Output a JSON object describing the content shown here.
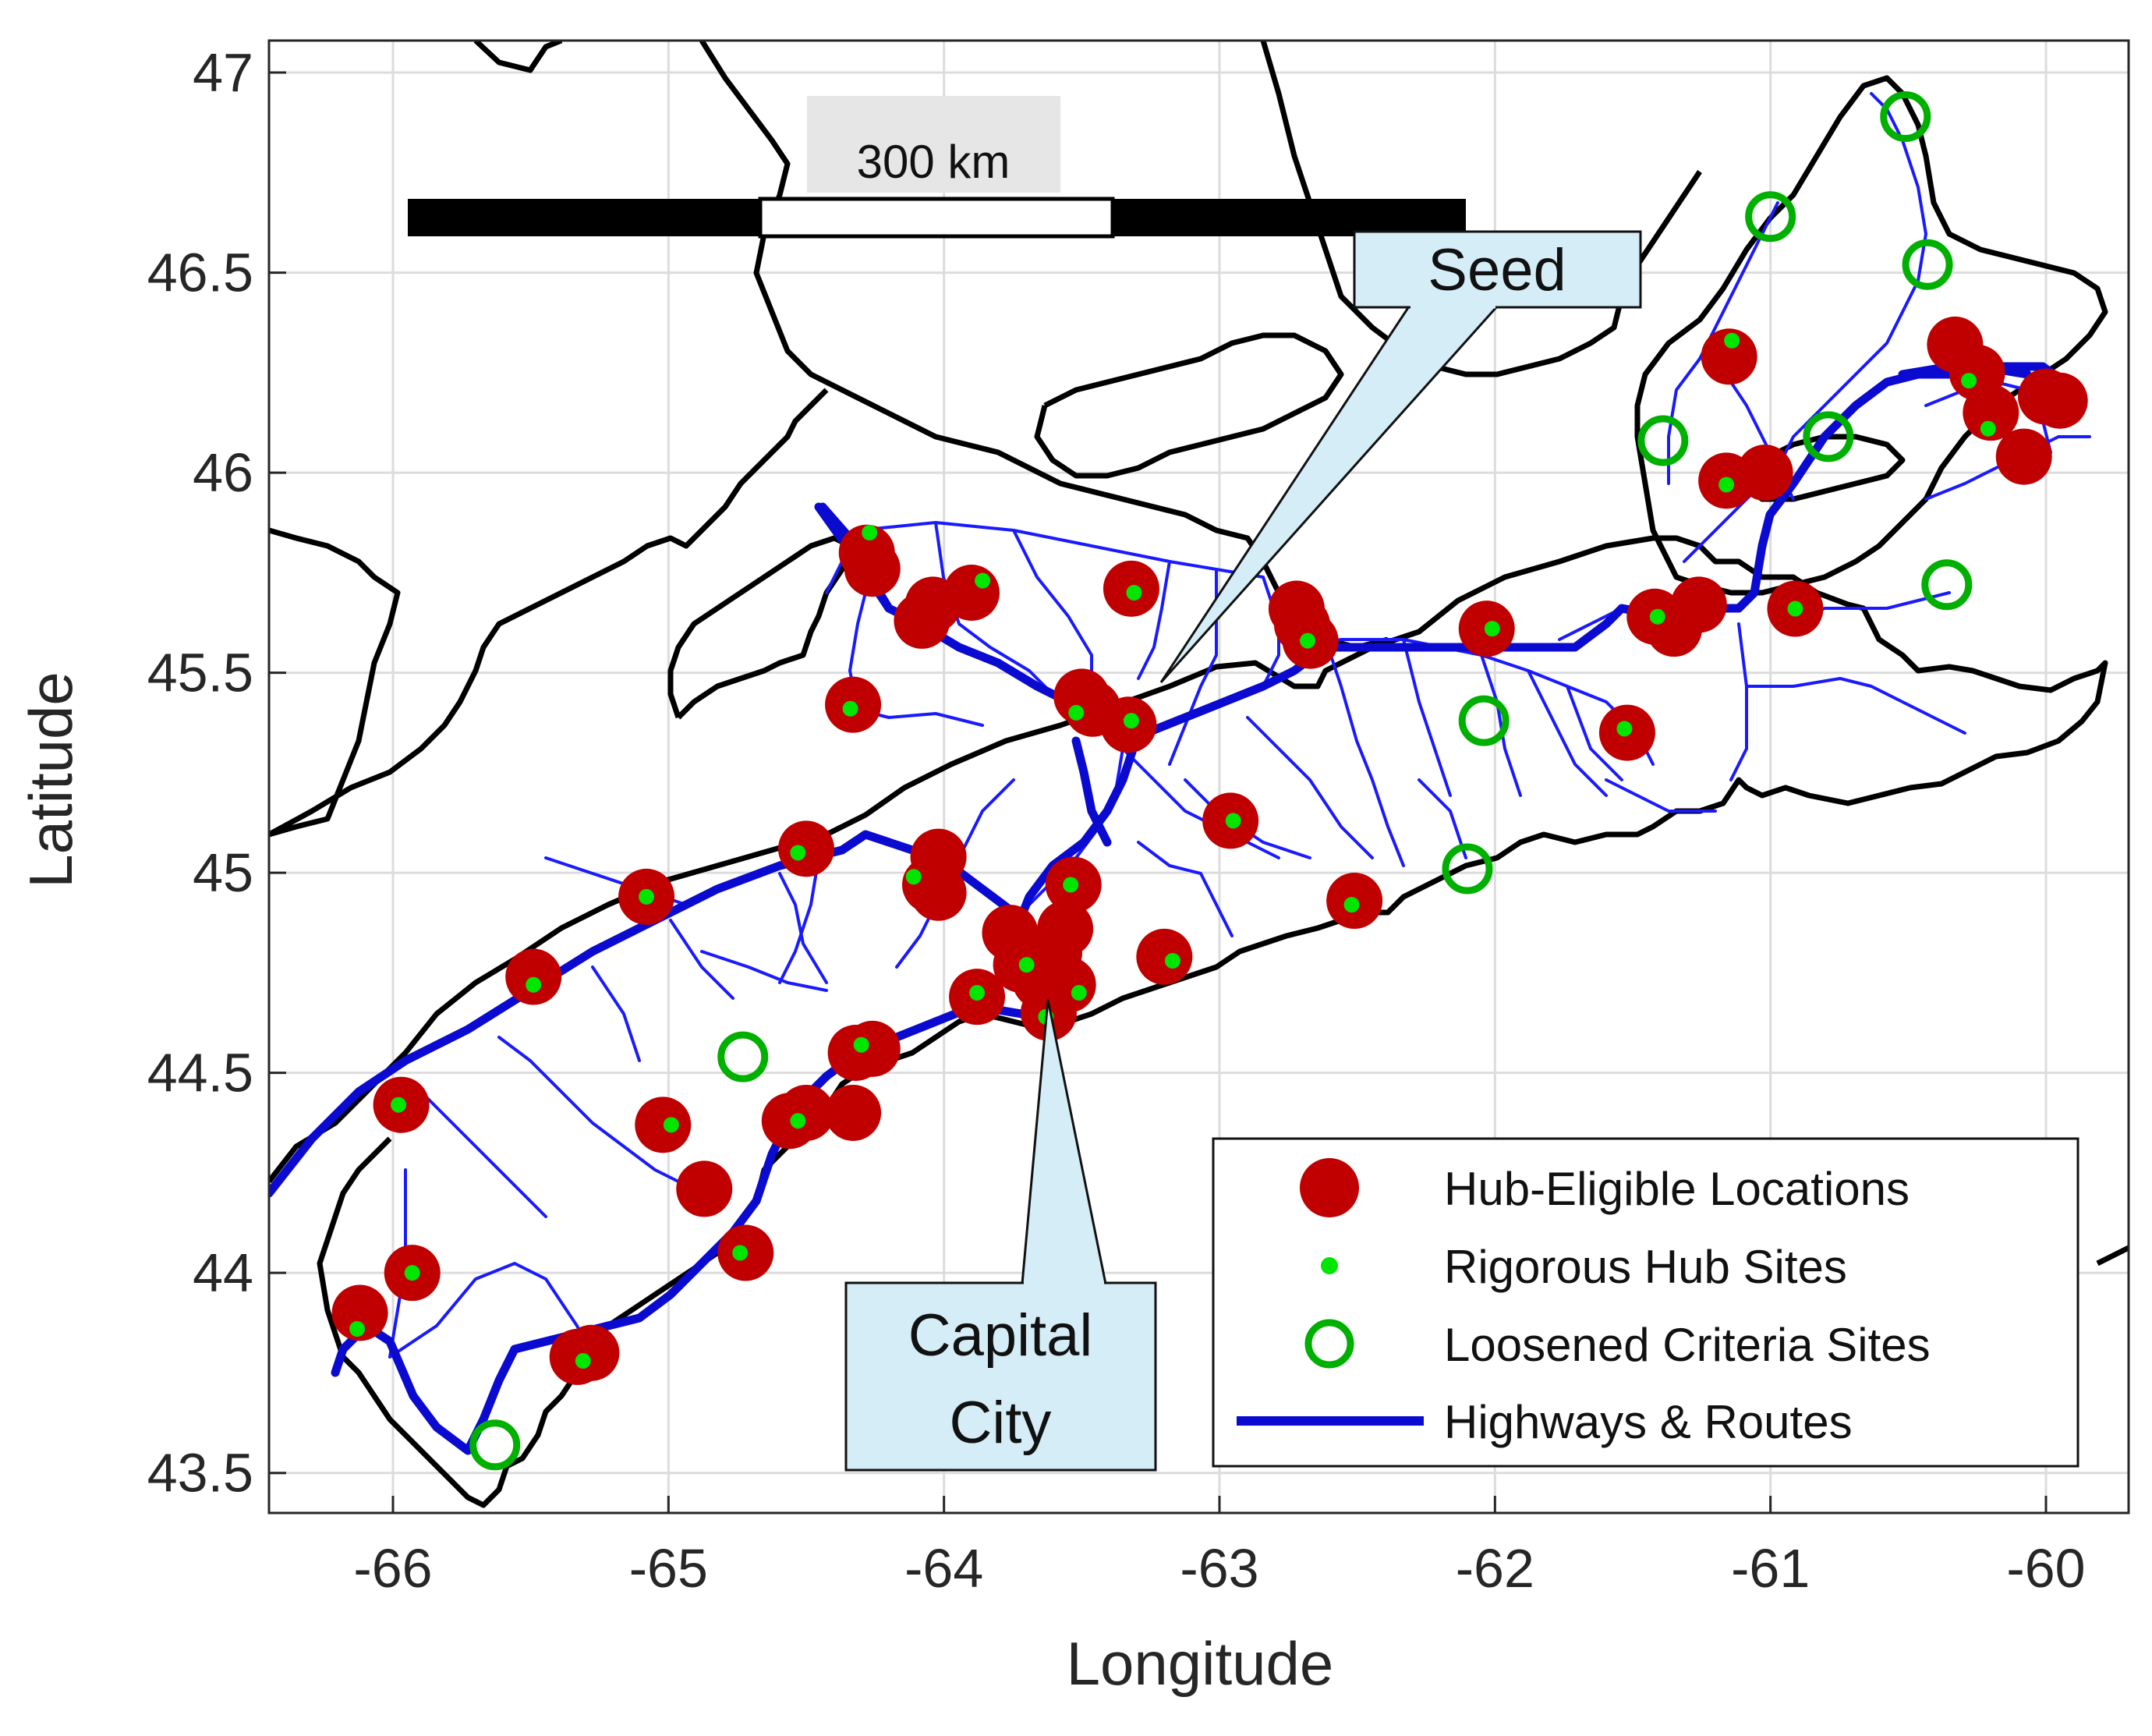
{
  "axes": {
    "xlabel": "Longitude",
    "ylabel": "Latitude",
    "xlim": [
      -66.45,
      -59.7
    ],
    "ylim": [
      43.4,
      47.08
    ],
    "xticks": [
      "-66",
      "-65",
      "-64",
      "-63",
      "-62",
      "-61",
      "-60"
    ],
    "yticks": [
      "43.5",
      "44",
      "44.5",
      "45",
      "45.5",
      "46",
      "46.5",
      "47"
    ],
    "grid": true
  },
  "scale_bar": {
    "label": "300 km"
  },
  "callouts": {
    "seed": {
      "text": "Seed"
    },
    "capital": {
      "line1": "Capital",
      "line2": "City"
    }
  },
  "legend": {
    "position": "bottom-right",
    "items": [
      {
        "label": "Hub-Eligible Locations",
        "marker": "filled-circle",
        "color": "#c00000"
      },
      {
        "label": "Rigorous Hub Sites",
        "marker": "dot",
        "color": "#00e600"
      },
      {
        "label": "Loosened Criteria Sites",
        "marker": "hollow-circle",
        "color": "#00b000"
      },
      {
        "label": "Highways & Routes",
        "marker": "line",
        "color": "#0000c8"
      }
    ]
  },
  "chart_data": {
    "type": "scatter",
    "hub_eligible": [
      [
        -66.12,
        43.9
      ],
      [
        -65.97,
        44.42
      ],
      [
        -65.93,
        44.0
      ],
      [
        -65.49,
        44.74
      ],
      [
        -65.33,
        43.79
      ],
      [
        -65.28,
        43.8
      ],
      [
        -65.08,
        44.94
      ],
      [
        -65.02,
        44.37
      ],
      [
        -64.87,
        44.21
      ],
      [
        -64.72,
        44.05
      ],
      [
        -64.56,
        44.38
      ],
      [
        -64.5,
        44.4
      ],
      [
        -64.5,
        45.06
      ],
      [
        -64.33,
        44.4
      ],
      [
        -64.32,
        44.55
      ],
      [
        -64.26,
        44.56
      ],
      [
        -64.33,
        45.42
      ],
      [
        -64.28,
        45.8
      ],
      [
        -64.26,
        45.76
      ],
      [
        -64.08,
        45.63
      ],
      [
        -64.04,
        45.67
      ],
      [
        -64.05,
        44.97
      ],
      [
        -64.02,
        45.04
      ],
      [
        -64.02,
        44.95
      ],
      [
        -63.9,
        45.7
      ],
      [
        -63.88,
        44.69
      ],
      [
        -63.76,
        44.85
      ],
      [
        -63.72,
        44.77
      ],
      [
        -63.65,
        44.73
      ],
      [
        -63.62,
        44.65
      ],
      [
        -63.6,
        44.8
      ],
      [
        -63.56,
        44.86
      ],
      [
        -63.55,
        44.72
      ],
      [
        -63.53,
        44.97
      ],
      [
        -63.5,
        45.44
      ],
      [
        -63.46,
        45.41
      ],
      [
        -63.32,
        45.71
      ],
      [
        -63.33,
        45.37
      ],
      [
        -63.2,
        44.79
      ],
      [
        -62.96,
        45.13
      ],
      [
        -62.72,
        45.66
      ],
      [
        -62.7,
        45.62
      ],
      [
        -62.67,
        45.58
      ],
      [
        -62.51,
        44.93
      ],
      [
        -62.03,
        45.61
      ],
      [
        -61.52,
        45.35
      ],
      [
        -61.42,
        45.64
      ],
      [
        -61.35,
        45.61
      ],
      [
        -61.26,
        45.67
      ],
      [
        -61.15,
        46.29
      ],
      [
        -61.16,
        45.98
      ],
      [
        -61.02,
        46.0
      ],
      [
        -60.91,
        45.66
      ],
      [
        -60.33,
        46.32
      ],
      [
        -60.25,
        46.25
      ],
      [
        -60.2,
        46.15
      ],
      [
        -60.08,
        46.04
      ],
      [
        -60.0,
        46.19
      ],
      [
        -59.95,
        46.18
      ]
    ],
    "rigorous_hub": [
      [
        -66.13,
        43.86
      ],
      [
        -65.98,
        44.42
      ],
      [
        -65.93,
        44.0
      ],
      [
        -65.49,
        44.72
      ],
      [
        -65.31,
        43.78
      ],
      [
        -65.08,
        44.94
      ],
      [
        -64.99,
        44.37
      ],
      [
        -64.74,
        44.05
      ],
      [
        -64.53,
        44.38
      ],
      [
        -64.53,
        45.05
      ],
      [
        -64.3,
        44.57
      ],
      [
        -64.34,
        45.41
      ],
      [
        -64.27,
        45.85
      ],
      [
        -64.11,
        44.99
      ],
      [
        -63.86,
        45.73
      ],
      [
        -63.88,
        44.7
      ],
      [
        -63.7,
        44.77
      ],
      [
        -63.63,
        44.64
      ],
      [
        -63.54,
        44.97
      ],
      [
        -63.51,
        44.7
      ],
      [
        -63.52,
        45.4
      ],
      [
        -63.31,
        45.7
      ],
      [
        -63.32,
        45.38
      ],
      [
        -63.17,
        44.78
      ],
      [
        -62.95,
        45.13
      ],
      [
        -62.68,
        45.58
      ],
      [
        -62.52,
        44.92
      ],
      [
        -62.01,
        45.61
      ],
      [
        -61.53,
        45.36
      ],
      [
        -61.41,
        45.64
      ],
      [
        -61.14,
        46.33
      ],
      [
        -61.16,
        45.97
      ],
      [
        -60.91,
        45.66
      ],
      [
        -60.28,
        46.23
      ],
      [
        -60.21,
        46.11
      ]
    ],
    "loosened": [
      [
        -65.63,
        43.57
      ],
      [
        -64.73,
        44.54
      ],
      [
        -62.1,
        45.01
      ],
      [
        -62.04,
        45.38
      ],
      [
        -61.39,
        46.08
      ],
      [
        -61.0,
        46.64
      ],
      [
        -60.79,
        46.09
      ],
      [
        -60.51,
        46.89
      ],
      [
        -60.43,
        46.52
      ],
      [
        -60.36,
        45.72
      ]
    ]
  }
}
